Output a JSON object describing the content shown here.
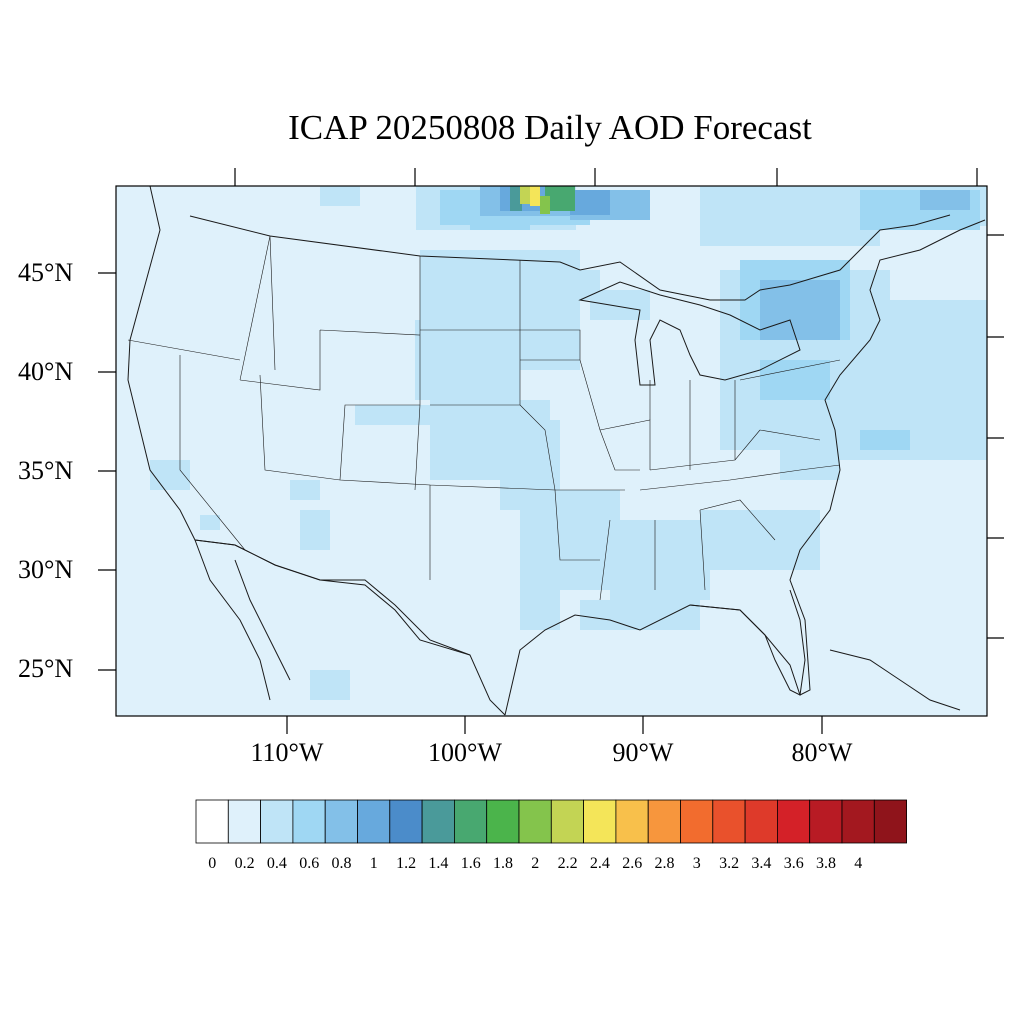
{
  "title": "ICAP 20250808 Daily AOD Forecast",
  "map": {
    "region": "Continental United States",
    "lon_range": [
      -119,
      -70
    ],
    "lat_range": [
      22.5,
      49.3
    ],
    "lat_ticks": [
      {
        "value": 45,
        "label": "45°N"
      },
      {
        "value": 40,
        "label": "40°N"
      },
      {
        "value": 35,
        "label": "35°N"
      },
      {
        "value": 30,
        "label": "30°N"
      },
      {
        "value": 25,
        "label": "25°N"
      }
    ],
    "lon_ticks": [
      {
        "value": -110,
        "label": "110°W"
      },
      {
        "value": -100,
        "label": "100°W"
      },
      {
        "value": -90,
        "label": "90°W"
      },
      {
        "value": -80,
        "label": "80°W"
      }
    ]
  },
  "colorbar": {
    "labels": [
      "0",
      "0.2",
      "0.4",
      "0.6",
      "0.8",
      "1",
      "1.2",
      "1.4",
      "1.6",
      "1.8",
      "2",
      "2.2",
      "2.4",
      "2.6",
      "2.8",
      "3",
      "3.2",
      "3.4",
      "3.6",
      "3.8",
      "4"
    ],
    "colors": [
      "#ffffff",
      "#dff1fb",
      "#bfe4f7",
      "#9fd7f3",
      "#83c0e8",
      "#67a9dd",
      "#4b8cca",
      "#4a9a9a",
      "#48a870",
      "#4bb44b",
      "#84c44c",
      "#c3d454",
      "#f4e559",
      "#f8c04b",
      "#f7963d",
      "#f26c2e",
      "#e9512c",
      "#de3a2a",
      "#d42128",
      "#b81b24",
      "#a3181f",
      "#8f141b"
    ]
  }
}
